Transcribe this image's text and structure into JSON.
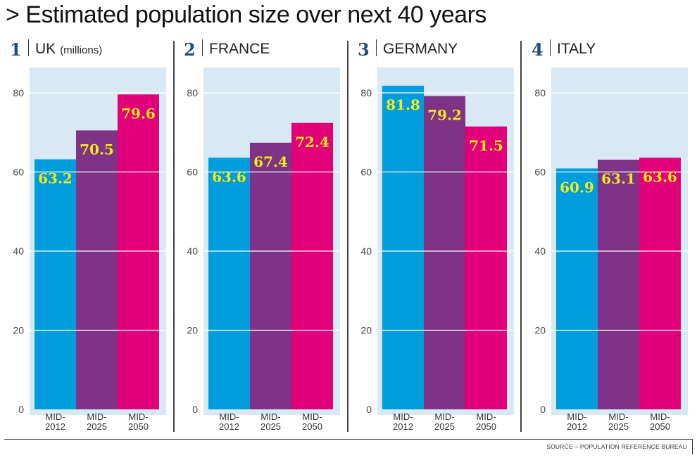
{
  "title": "> Estimated population size over next 40 years",
  "source": "SOURCE – POPULATION REFERENCE BUREAU",
  "colors": {
    "panel_bg": "#d8e9f3",
    "grid": "#ffffff",
    "number": "#1d4f7c",
    "label": "#f5ea14",
    "series": [
      "#009ddc",
      "#7e3387",
      "#e2007a"
    ]
  },
  "chart_data": [
    {
      "type": "bar",
      "index": "1",
      "title": "UK",
      "unit": "(millions)",
      "categories": [
        [
          "MID-",
          "2012"
        ],
        [
          "MID-",
          "2025"
        ],
        [
          "MID-",
          "2050"
        ]
      ],
      "values": [
        63.2,
        70.5,
        79.6
      ],
      "labels": [
        "63.2",
        "70.5",
        "79.6"
      ],
      "ylim": [
        0,
        80
      ],
      "yticks": [
        0,
        20,
        40,
        60,
        80
      ],
      "grid": true
    },
    {
      "type": "bar",
      "index": "2",
      "title": "FRANCE",
      "unit": "",
      "categories": [
        [
          "MID-",
          "2012"
        ],
        [
          "MID-",
          "2025"
        ],
        [
          "MID-",
          "2050"
        ]
      ],
      "values": [
        63.6,
        67.4,
        72.4
      ],
      "labels": [
        "63.6",
        "67.4",
        "72.4"
      ],
      "ylim": [
        0,
        80
      ],
      "yticks": [
        0,
        20,
        40,
        60,
        80
      ],
      "grid": true
    },
    {
      "type": "bar",
      "index": "3",
      "title": "GERMANY",
      "unit": "",
      "categories": [
        [
          "MID-",
          "2012"
        ],
        [
          "MID-",
          "2025"
        ],
        [
          "MID-",
          "2050"
        ]
      ],
      "values": [
        81.8,
        79.2,
        71.5
      ],
      "labels": [
        "81.8",
        "79.2",
        "71.5"
      ],
      "ylim": [
        0,
        80
      ],
      "yticks": [
        0,
        20,
        40,
        60,
        80
      ],
      "grid": true
    },
    {
      "type": "bar",
      "index": "4",
      "title": "ITALY",
      "unit": "",
      "categories": [
        [
          "MID-",
          "2012"
        ],
        [
          "MID-",
          "2025"
        ],
        [
          "MID-",
          "2050"
        ]
      ],
      "values": [
        60.9,
        63.1,
        63.6
      ],
      "labels": [
        "60.9",
        "63.1",
        "63.6"
      ],
      "ylim": [
        0,
        80
      ],
      "yticks": [
        0,
        20,
        40,
        60,
        80
      ],
      "grid": true
    }
  ]
}
